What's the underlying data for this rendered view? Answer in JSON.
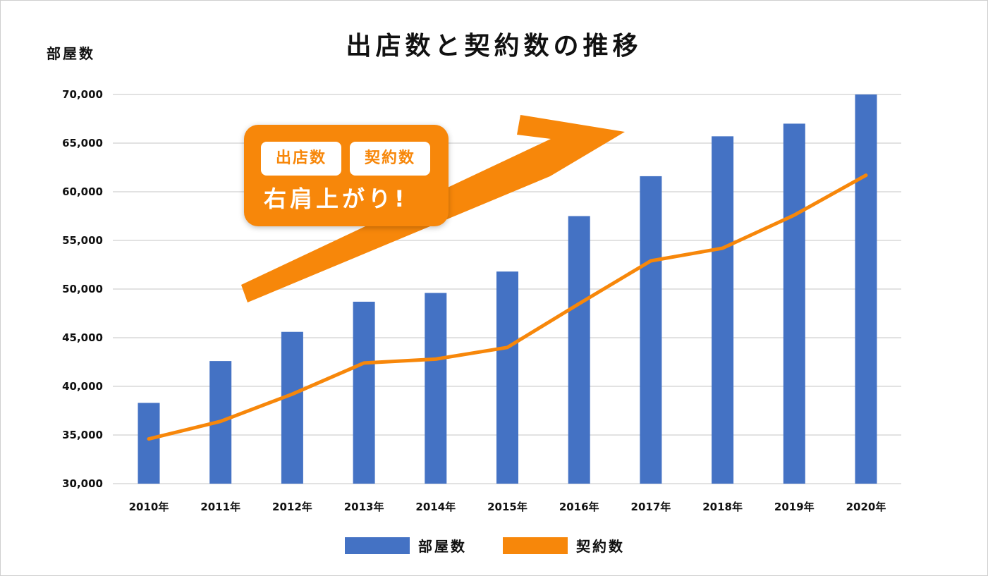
{
  "chart_data": {
    "type": "bar",
    "title": "出店数と契約数の推移",
    "ylabel": "部屋数",
    "xlabel": "",
    "ylim": [
      30000,
      70000
    ],
    "ytick_values": [
      30000,
      35000,
      40000,
      45000,
      50000,
      55000,
      60000,
      65000,
      70000
    ],
    "ytick_labels": [
      "30,000",
      "35,000",
      "40,000",
      "45,000",
      "50,000",
      "55,000",
      "60,000",
      "65,000",
      "70,000"
    ],
    "categories": [
      "2010年",
      "2011年",
      "2012年",
      "2013年",
      "2014年",
      "2015年",
      "2016年",
      "2017年",
      "2018年",
      "2019年",
      "2020年"
    ],
    "grid": true,
    "legend_position": "bottom-center",
    "series": [
      {
        "name": "部屋数",
        "kind": "bar",
        "color": "#4472c4",
        "values": [
          38300,
          42600,
          45600,
          48700,
          49600,
          51800,
          57500,
          61600,
          65700,
          67000,
          70000
        ]
      },
      {
        "name": "契約数",
        "kind": "line",
        "color": "#f7870a",
        "values": [
          34600,
          36400,
          39200,
          42400,
          42800,
          44000,
          48500,
          52900,
          54200,
          57600,
          61700
        ]
      }
    ],
    "annotation": {
      "tags": [
        "出店数",
        "契約数"
      ],
      "text": "右肩上がり!",
      "arrow_color": "#f7870a"
    }
  }
}
